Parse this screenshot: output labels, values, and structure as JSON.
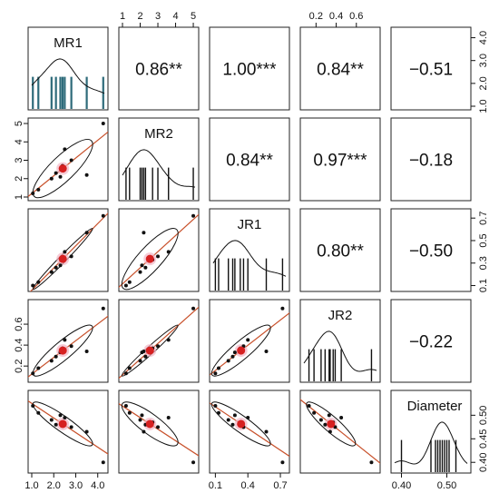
{
  "chart_data": {
    "type": "scatter-matrix",
    "variables": [
      "MR1",
      "MR2",
      "JR1",
      "JR2",
      "Diameter"
    ],
    "ranges": {
      "MR1": [
        1.0,
        4.3
      ],
      "MR2": [
        1.0,
        5.1
      ],
      "JR1": [
        0.08,
        0.75
      ],
      "JR2": [
        0.08,
        0.8
      ],
      "Diameter": [
        0.385,
        0.545
      ]
    },
    "ticks": {
      "MR1": {
        "values": [
          1.0,
          2.0,
          3.0,
          4.0
        ],
        "labels": [
          "1.0",
          "2.0",
          "3.0",
          "4.0"
        ]
      },
      "MR1_bottom": {
        "values": [
          1.0,
          2.0,
          3.0,
          4.0
        ],
        "labels": [
          "1.0",
          "2.0",
          "3.0",
          "4.0"
        ]
      },
      "MR2": {
        "values": [
          1,
          2,
          3,
          4,
          5
        ],
        "labels": [
          "1",
          "2",
          "3",
          "4",
          "5"
        ]
      },
      "JR1": {
        "values": [
          0.1,
          0.3,
          0.5,
          0.7
        ],
        "labels": [
          "0.1",
          "0.3",
          "0.5",
          "0.7"
        ]
      },
      "JR1_bottom": {
        "values": [
          0.1,
          0.4,
          0.7
        ],
        "labels": [
          "0.1",
          "0.4",
          "0.7"
        ]
      },
      "JR2": {
        "values": [
          0.2,
          0.4,
          0.6
        ],
        "labels": [
          "0.2",
          "0.4",
          "0.6"
        ]
      },
      "Diameter": {
        "values": [
          0.4,
          0.45,
          0.5
        ],
        "labels": [
          "0.40",
          "0.45",
          "0.50"
        ]
      },
      "Diameter_bottom": {
        "values": [
          0.4,
          0.5
        ],
        "labels": [
          "0.40",
          "0.50"
        ]
      }
    },
    "observations": [
      {
        "MR1": 1.05,
        "MR2": 1.2,
        "JR1": 0.1,
        "JR2": 0.13,
        "Diameter": 0.52
      },
      {
        "MR1": 1.3,
        "MR2": 1.4,
        "JR1": 0.13,
        "JR2": 0.18,
        "Diameter": 0.505
      },
      {
        "MR1": 1.9,
        "MR2": 2.0,
        "JR1": 0.22,
        "JR2": 0.25,
        "Diameter": 0.49
      },
      {
        "MR1": 2.1,
        "MR2": 2.3,
        "JR1": 0.26,
        "JR2": 0.29,
        "Diameter": 0.48
      },
      {
        "MR1": 2.3,
        "MR2": 2.1,
        "JR1": 0.28,
        "JR2": 0.33,
        "Diameter": 0.5
      },
      {
        "MR1": 2.4,
        "MR2": 2.7,
        "JR1": 0.33,
        "JR2": 0.37,
        "Diameter": 0.485
      },
      {
        "MR1": 2.5,
        "MR2": 3.6,
        "JR1": 0.4,
        "JR2": 0.45,
        "Diameter": 0.495
      },
      {
        "MR1": 2.8,
        "MR2": 3.0,
        "JR1": 0.36,
        "JR2": 0.39,
        "Diameter": 0.475
      },
      {
        "MR1": 3.5,
        "MR2": 2.2,
        "JR1": 0.57,
        "JR2": 0.34,
        "Diameter": 0.465
      },
      {
        "MR1": 4.25,
        "MR2": 5.0,
        "JR1": 0.72,
        "JR2": 0.75,
        "Diameter": 0.4
      }
    ],
    "correlations": [
      {
        "row": "MR1",
        "col": "MR2",
        "label": "0.86**"
      },
      {
        "row": "MR1",
        "col": "JR1",
        "label": "1.00***"
      },
      {
        "row": "MR1",
        "col": "JR2",
        "label": "0.84**"
      },
      {
        "row": "MR1",
        "col": "Diameter",
        "label": "−0.51"
      },
      {
        "row": "MR2",
        "col": "JR1",
        "label": "0.84**"
      },
      {
        "row": "MR2",
        "col": "JR2",
        "label": "0.97***"
      },
      {
        "row": "MR2",
        "col": "Diameter",
        "label": "−0.18"
      },
      {
        "row": "JR1",
        "col": "JR2",
        "label": "0.80**"
      },
      {
        "row": "JR1",
        "col": "Diameter",
        "label": "−0.50"
      },
      {
        "row": "JR2",
        "col": "Diameter",
        "label": "−0.22"
      }
    ],
    "colors": {
      "points": "#111111",
      "mean_point": "#d62020",
      "regression_line": "#c8502a",
      "mean_halo": "#f2b6c6",
      "rug_mr1": "#2e6b7a",
      "rug": "#111111"
    }
  }
}
